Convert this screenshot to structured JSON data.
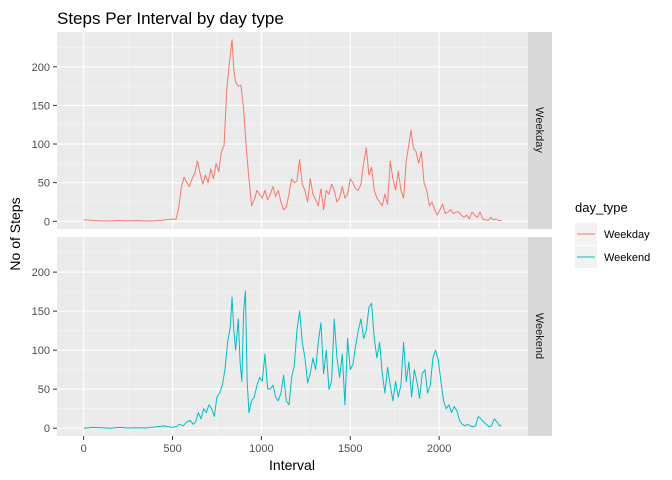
{
  "chart_data": {
    "type": "line",
    "title": "Steps Per Interval by day type",
    "xlabel": "Interval",
    "ylabel": "No of Steps",
    "xlim": [
      -150,
      2500
    ],
    "ylim": [
      -10,
      245
    ],
    "x_ticks": [
      0,
      500,
      1000,
      1500,
      2000
    ],
    "y_ticks": [
      0,
      50,
      100,
      150,
      200
    ],
    "grid": true,
    "facets": [
      "Weekday",
      "Weekend"
    ],
    "legend": {
      "title": "day_type",
      "position": "right"
    },
    "series": [
      {
        "name": "Weekday",
        "color": "#F8766D",
        "points": [
          [
            0,
            2
          ],
          [
            50,
            1
          ],
          [
            100,
            0.5
          ],
          [
            150,
            0.3
          ],
          [
            200,
            1
          ],
          [
            250,
            0.5
          ],
          [
            300,
            0.8
          ],
          [
            350,
            0.3
          ],
          [
            400,
            0.5
          ],
          [
            450,
            1.5
          ],
          [
            500,
            3
          ],
          [
            520,
            2.5
          ],
          [
            535,
            18
          ],
          [
            550,
            45
          ],
          [
            565,
            57
          ],
          [
            580,
            50
          ],
          [
            595,
            45
          ],
          [
            610,
            55
          ],
          [
            625,
            62
          ],
          [
            640,
            78
          ],
          [
            655,
            62
          ],
          [
            670,
            48
          ],
          [
            685,
            60
          ],
          [
            700,
            50
          ],
          [
            715,
            68
          ],
          [
            730,
            55
          ],
          [
            745,
            75
          ],
          [
            760,
            64
          ],
          [
            775,
            90
          ],
          [
            790,
            98
          ],
          [
            805,
            170
          ],
          [
            820,
            205
          ],
          [
            835,
            235
          ],
          [
            845,
            195
          ],
          [
            855,
            180
          ],
          [
            870,
            175
          ],
          [
            885,
            176
          ],
          [
            900,
            145
          ],
          [
            915,
            95
          ],
          [
            930,
            55
          ],
          [
            945,
            20
          ],
          [
            960,
            28
          ],
          [
            975,
            40
          ],
          [
            990,
            35
          ],
          [
            1005,
            30
          ],
          [
            1020,
            40
          ],
          [
            1035,
            28
          ],
          [
            1050,
            35
          ],
          [
            1065,
            45
          ],
          [
            1080,
            32
          ],
          [
            1095,
            40
          ],
          [
            1110,
            25
          ],
          [
            1125,
            15
          ],
          [
            1140,
            18
          ],
          [
            1155,
            35
          ],
          [
            1170,
            55
          ],
          [
            1185,
            50
          ],
          [
            1200,
            52
          ],
          [
            1215,
            80
          ],
          [
            1230,
            48
          ],
          [
            1245,
            40
          ],
          [
            1260,
            25
          ],
          [
            1275,
            55
          ],
          [
            1290,
            35
          ],
          [
            1305,
            28
          ],
          [
            1320,
            20
          ],
          [
            1335,
            42
          ],
          [
            1350,
            15
          ],
          [
            1365,
            40
          ],
          [
            1380,
            35
          ],
          [
            1395,
            48
          ],
          [
            1410,
            40
          ],
          [
            1425,
            25
          ],
          [
            1440,
            30
          ],
          [
            1455,
            45
          ],
          [
            1470,
            30
          ],
          [
            1485,
            35
          ],
          [
            1500,
            55
          ],
          [
            1515,
            50
          ],
          [
            1530,
            42
          ],
          [
            1545,
            40
          ],
          [
            1560,
            48
          ],
          [
            1575,
            75
          ],
          [
            1590,
            95
          ],
          [
            1605,
            60
          ],
          [
            1620,
            70
          ],
          [
            1635,
            40
          ],
          [
            1650,
            30
          ],
          [
            1665,
            25
          ],
          [
            1680,
            20
          ],
          [
            1695,
            35
          ],
          [
            1710,
            22
          ],
          [
            1725,
            78
          ],
          [
            1740,
            55
          ],
          [
            1755,
            40
          ],
          [
            1770,
            65
          ],
          [
            1785,
            40
          ],
          [
            1800,
            30
          ],
          [
            1815,
            78
          ],
          [
            1830,
            100
          ],
          [
            1842,
            118
          ],
          [
            1855,
            95
          ],
          [
            1870,
            90
          ],
          [
            1885,
            75
          ],
          [
            1900,
            90
          ],
          [
            1915,
            50
          ],
          [
            1930,
            40
          ],
          [
            1945,
            20
          ],
          [
            1960,
            25
          ],
          [
            1975,
            15
          ],
          [
            1990,
            8
          ],
          [
            2005,
            15
          ],
          [
            2020,
            22
          ],
          [
            2035,
            10
          ],
          [
            2050,
            12
          ],
          [
            2065,
            15
          ],
          [
            2080,
            10
          ],
          [
            2095,
            12
          ],
          [
            2110,
            12
          ],
          [
            2125,
            8
          ],
          [
            2140,
            5
          ],
          [
            2155,
            8
          ],
          [
            2170,
            3
          ],
          [
            2185,
            12
          ],
          [
            2200,
            8
          ],
          [
            2215,
            5
          ],
          [
            2230,
            12
          ],
          [
            2245,
            3
          ],
          [
            2260,
            2
          ],
          [
            2275,
            1
          ],
          [
            2290,
            5
          ],
          [
            2305,
            2
          ],
          [
            2320,
            3
          ],
          [
            2335,
            1
          ],
          [
            2350,
            1
          ]
        ]
      },
      {
        "name": "Weekend",
        "color": "#00BFC4",
        "points": [
          [
            0,
            0
          ],
          [
            50,
            1
          ],
          [
            100,
            0.5
          ],
          [
            150,
            0
          ],
          [
            200,
            1
          ],
          [
            250,
            0.3
          ],
          [
            300,
            0.5
          ],
          [
            350,
            0.3
          ],
          [
            400,
            1.5
          ],
          [
            450,
            3
          ],
          [
            500,
            1
          ],
          [
            520,
            2
          ],
          [
            540,
            5
          ],
          [
            560,
            3
          ],
          [
            580,
            8
          ],
          [
            600,
            10
          ],
          [
            615,
            5
          ],
          [
            630,
            8
          ],
          [
            645,
            20
          ],
          [
            660,
            12
          ],
          [
            675,
            25
          ],
          [
            690,
            20
          ],
          [
            705,
            30
          ],
          [
            720,
            25
          ],
          [
            735,
            15
          ],
          [
            750,
            40
          ],
          [
            765,
            45
          ],
          [
            780,
            55
          ],
          [
            795,
            75
          ],
          [
            810,
            110
          ],
          [
            825,
            130
          ],
          [
            835,
            168
          ],
          [
            845,
            125
          ],
          [
            855,
            100
          ],
          [
            870,
            140
          ],
          [
            880,
            85
          ],
          [
            890,
            60
          ],
          [
            900,
            150
          ],
          [
            910,
            176
          ],
          [
            920,
            60
          ],
          [
            930,
            20
          ],
          [
            945,
            35
          ],
          [
            960,
            40
          ],
          [
            975,
            55
          ],
          [
            990,
            65
          ],
          [
            1005,
            60
          ],
          [
            1020,
            95
          ],
          [
            1035,
            50
          ],
          [
            1050,
            50
          ],
          [
            1065,
            55
          ],
          [
            1080,
            40
          ],
          [
            1095,
            35
          ],
          [
            1110,
            45
          ],
          [
            1125,
            68
          ],
          [
            1140,
            35
          ],
          [
            1155,
            30
          ],
          [
            1170,
            65
          ],
          [
            1185,
            80
          ],
          [
            1200,
            125
          ],
          [
            1215,
            150
          ],
          [
            1230,
            110
          ],
          [
            1245,
            90
          ],
          [
            1260,
            58
          ],
          [
            1275,
            70
          ],
          [
            1290,
            90
          ],
          [
            1305,
            75
          ],
          [
            1320,
            110
          ],
          [
            1335,
            135
          ],
          [
            1350,
            70
          ],
          [
            1365,
            100
          ],
          [
            1380,
            50
          ],
          [
            1395,
            60
          ],
          [
            1410,
            140
          ],
          [
            1425,
            90
          ],
          [
            1440,
            65
          ],
          [
            1455,
            95
          ],
          [
            1470,
            30
          ],
          [
            1485,
            115
          ],
          [
            1500,
            75
          ],
          [
            1515,
            82
          ],
          [
            1530,
            105
          ],
          [
            1545,
            125
          ],
          [
            1560,
            140
          ],
          [
            1575,
            115
          ],
          [
            1590,
            125
          ],
          [
            1605,
            155
          ],
          [
            1620,
            160
          ],
          [
            1635,
            115
          ],
          [
            1650,
            90
          ],
          [
            1665,
            110
          ],
          [
            1680,
            70
          ],
          [
            1695,
            45
          ],
          [
            1710,
            78
          ],
          [
            1725,
            55
          ],
          [
            1740,
            35
          ],
          [
            1755,
            60
          ],
          [
            1770,
            40
          ],
          [
            1785,
            55
          ],
          [
            1800,
            110
          ],
          [
            1815,
            60
          ],
          [
            1830,
            85
          ],
          [
            1845,
            40
          ],
          [
            1860,
            75
          ],
          [
            1875,
            60
          ],
          [
            1890,
            38
          ],
          [
            1905,
            70
          ],
          [
            1920,
            75
          ],
          [
            1935,
            45
          ],
          [
            1950,
            55
          ],
          [
            1965,
            90
          ],
          [
            1980,
            100
          ],
          [
            1995,
            88
          ],
          [
            2010,
            60
          ],
          [
            2025,
            35
          ],
          [
            2040,
            25
          ],
          [
            2055,
            30
          ],
          [
            2070,
            20
          ],
          [
            2085,
            28
          ],
          [
            2100,
            22
          ],
          [
            2115,
            10
          ],
          [
            2130,
            5
          ],
          [
            2145,
            3
          ],
          [
            2160,
            5
          ],
          [
            2175,
            3
          ],
          [
            2190,
            2
          ],
          [
            2205,
            3
          ],
          [
            2220,
            15
          ],
          [
            2235,
            12
          ],
          [
            2250,
            8
          ],
          [
            2265,
            5
          ],
          [
            2280,
            2
          ],
          [
            2295,
            3
          ],
          [
            2310,
            12
          ],
          [
            2325,
            8
          ],
          [
            2340,
            3
          ],
          [
            2350,
            4
          ]
        ]
      }
    ]
  }
}
